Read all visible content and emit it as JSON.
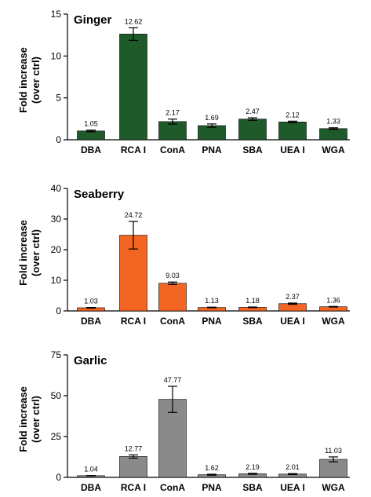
{
  "chart_data": [
    {
      "type": "bar",
      "title": "Ginger",
      "ylabel": "Fold increase\n(over ctrl)",
      "ylim": [
        0,
        15
      ],
      "yticks": [
        0,
        5,
        10,
        15
      ],
      "color": "#1e5a2a",
      "categories": [
        "DBA",
        "RCA I",
        "ConA",
        "PNA",
        "SBA",
        "UEA I",
        "WGA"
      ],
      "values": [
        1.05,
        12.62,
        2.17,
        1.69,
        2.47,
        2.12,
        1.33
      ],
      "value_labels": [
        "1.05",
        "12.62",
        "2.17",
        "1.69",
        "2.47",
        "2.12",
        "1.33"
      ],
      "errors": [
        0.1,
        0.75,
        0.3,
        0.2,
        0.15,
        0.1,
        0.1
      ]
    },
    {
      "type": "bar",
      "title": "Seaberry",
      "ylabel": "Fold increase\n(over ctrl)",
      "ylim": [
        0,
        40
      ],
      "yticks": [
        0,
        10,
        20,
        30,
        40
      ],
      "color": "#f26522",
      "categories": [
        "DBA",
        "RCA I",
        "ConA",
        "PNA",
        "SBA",
        "UEA I",
        "WGA"
      ],
      "values": [
        1.03,
        24.72,
        9.03,
        1.13,
        1.18,
        2.37,
        1.36
      ],
      "value_labels": [
        "1.03",
        "24.72",
        "9.03",
        "1.13",
        "1.18",
        "2.37",
        "1.36"
      ],
      "errors": [
        0.1,
        4.5,
        0.4,
        0.1,
        0.1,
        0.2,
        0.1
      ]
    },
    {
      "type": "bar",
      "title": "Garlic",
      "ylabel": "Fold increase\n(over ctrl)",
      "ylim": [
        0,
        75
      ],
      "yticks": [
        0,
        25,
        50,
        75
      ],
      "color": "#8a8a8a",
      "categories": [
        "DBA",
        "RCA I",
        "ConA",
        "PNA",
        "SBA",
        "UEA I",
        "WGA"
      ],
      "values": [
        1.04,
        12.77,
        47.77,
        1.62,
        2.19,
        2.01,
        11.03
      ],
      "value_labels": [
        "1.04",
        "12.77",
        "47.77",
        "1.62",
        "2.19",
        "2.01",
        "11.03"
      ],
      "errors": [
        0.1,
        1.0,
        8.0,
        0.3,
        0.3,
        0.3,
        1.5
      ]
    }
  ]
}
